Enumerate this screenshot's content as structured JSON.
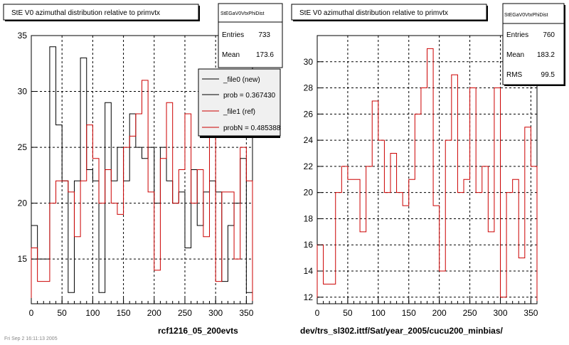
{
  "left_panel": {
    "title": "StE V0 azimuthal distribution relative to primvtx",
    "stats": {
      "name": "StEGaV0VtxPhiDist",
      "rows": [
        {
          "label": "Entries",
          "value": "733"
        },
        {
          "label": "Mean",
          "value": "173.6"
        }
      ]
    },
    "legend": [
      {
        "label": "_file0 (new)",
        "color": "#000000"
      },
      {
        "label": "prob = 0.367430",
        "color": "#000000"
      },
      {
        "label": "_file1 (ref)",
        "color": "#cc0000"
      },
      {
        "label": "probN = 0.485388",
        "color": "#cc0000"
      }
    ],
    "footer_label": "rcf1216_05_200evts",
    "corner_text": "Fri Sep  2 16:11:13 2005"
  },
  "right_panel": {
    "title": "StE V0 azimuthal distribution relative to primvtx",
    "stats": {
      "name": "StEGaV0VtxPhiDist",
      "rows": [
        {
          "label": "Entries",
          "value": "760"
        },
        {
          "label": "Mean",
          "value": "183.2"
        },
        {
          "label": "RMS",
          "value": "99.5"
        }
      ]
    },
    "footer_label": "dev/trs_sl302.ittf/Sat/year_2005/cucu200_minbias/"
  },
  "chart_data": [
    {
      "type": "line",
      "title": "StE V0 azimuthal distribution relative to primvtx",
      "xlim": [
        0,
        360
      ],
      "ylim": [
        11,
        35
      ],
      "xticks": [
        0,
        50,
        100,
        150,
        200,
        250,
        300,
        350
      ],
      "yticks": [
        15,
        20,
        25,
        30,
        35
      ],
      "grid": true,
      "bin_width": 10,
      "x": [
        0,
        10,
        20,
        30,
        40,
        50,
        60,
        70,
        80,
        90,
        100,
        110,
        120,
        130,
        140,
        150,
        160,
        170,
        180,
        190,
        200,
        210,
        220,
        230,
        240,
        250,
        260,
        270,
        280,
        290,
        300,
        310,
        320,
        330,
        340,
        350
      ],
      "series": [
        {
          "name": "_file0 (new)",
          "color": "#000000",
          "values": [
            18,
            15,
            15,
            34,
            27,
            22,
            12,
            22,
            33,
            23,
            22,
            12,
            29,
            22,
            25,
            22,
            28,
            25,
            24,
            25,
            20,
            25,
            22,
            20,
            21,
            16,
            23,
            18,
            21,
            22,
            21,
            13,
            18,
            20,
            24,
            12
          ]
        },
        {
          "name": "_file1 (ref)",
          "color": "#cc0000",
          "values": [
            16,
            13,
            13,
            20,
            22,
            22,
            21,
            17,
            22,
            27,
            24,
            20,
            23,
            20,
            19,
            25,
            26,
            28,
            31,
            21,
            14,
            24,
            29,
            20,
            23,
            28,
            20,
            23,
            17,
            28,
            13,
            21,
            21,
            15,
            25,
            22
          ]
        }
      ]
    },
    {
      "type": "line",
      "title": "StE V0 azimuthal distribution relative to primvtx",
      "xlim": [
        0,
        360
      ],
      "ylim": [
        11.5,
        32
      ],
      "xticks": [
        0,
        50,
        100,
        150,
        200,
        250,
        300,
        350
      ],
      "yticks": [
        12,
        14,
        16,
        18,
        20,
        22,
        24,
        26,
        28,
        30
      ],
      "grid": true,
      "bin_width": 10,
      "x": [
        0,
        10,
        20,
        30,
        40,
        50,
        60,
        70,
        80,
        90,
        100,
        110,
        120,
        130,
        140,
        150,
        160,
        170,
        180,
        190,
        200,
        210,
        220,
        230,
        240,
        250,
        260,
        270,
        280,
        290,
        300,
        310,
        320,
        330,
        340,
        350
      ],
      "series": [
        {
          "color": "#cc0000",
          "values": [
            16,
            13,
            13,
            20,
            22,
            21,
            21,
            17,
            22,
            27,
            24,
            20,
            23,
            20,
            19,
            21,
            26,
            28,
            31,
            19,
            14,
            24,
            29,
            20,
            21,
            28,
            20,
            22,
            17,
            28,
            12,
            20,
            21,
            15,
            25,
            22
          ]
        }
      ]
    }
  ]
}
